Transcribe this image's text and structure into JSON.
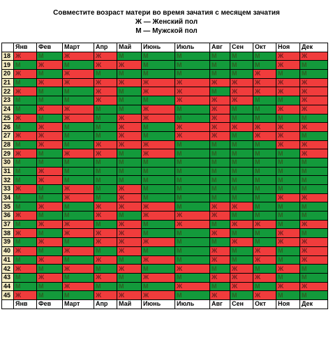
{
  "header": {
    "title": "Совместите возраст матери во время зачатия с месяцем зачатия",
    "legend_female": "Ж — Женский пол",
    "legend_male": "М — Мужской пол"
  },
  "months": [
    "Янв",
    "Фев",
    "Март",
    "Апр",
    "Май",
    "Июнь",
    "Июль",
    "Авг",
    "Сен",
    "Окт",
    "Ноя",
    "Дек"
  ],
  "colors": {
    "female": "#f03c3c",
    "male": "#139a3b",
    "age_bg": "#f4ecc2"
  },
  "table": {
    "rows": [
      {
        "age": "18",
        "cells": [
          "Ж",
          "М",
          "Ж",
          "Ж",
          "М",
          "М",
          "М",
          "М",
          "М",
          "М",
          "Ж",
          "Ж"
        ]
      },
      {
        "age": "19",
        "cells": [
          "М",
          "Ж",
          "М",
          "Ж",
          "Ж",
          "М",
          "М",
          "М",
          "М",
          "М",
          "Ж",
          "М"
        ]
      },
      {
        "age": "20",
        "cells": [
          "Ж",
          "М",
          "Ж",
          "М",
          "М",
          "М",
          "М",
          "М",
          "М",
          "Ж",
          "М",
          "М"
        ]
      },
      {
        "age": "21",
        "cells": [
          "М",
          "Ж",
          "Ж",
          "Ж",
          "Ж",
          "Ж",
          "Ж",
          "Ж",
          "Ж",
          "Ж",
          "Ж",
          "Ж"
        ]
      },
      {
        "age": "22",
        "cells": [
          "Ж",
          "М",
          "М",
          "Ж",
          "М",
          "Ж",
          "Ж",
          "М",
          "Ж",
          "Ж",
          "Ж",
          "Ж"
        ]
      },
      {
        "age": "23",
        "cells": [
          "М",
          "М",
          "М",
          "Ж",
          "М",
          "М",
          "Ж",
          "Ж",
          "Ж",
          "М",
          "М",
          "Ж"
        ]
      },
      {
        "age": "24",
        "cells": [
          "М",
          "Ж",
          "Ж",
          "М",
          "М",
          "Ж",
          "М",
          "Ж",
          "М",
          "М",
          "Ж",
          "Ж"
        ]
      },
      {
        "age": "25",
        "cells": [
          "Ж",
          "М",
          "Ж",
          "М",
          "Ж",
          "Ж",
          "М",
          "Ж",
          "М",
          "М",
          "М",
          "М"
        ]
      },
      {
        "age": "26",
        "cells": [
          "М",
          "Ж",
          "М",
          "М",
          "Ж",
          "М",
          "Ж",
          "Ж",
          "Ж",
          "Ж",
          "Ж",
          "Ж"
        ]
      },
      {
        "age": "27",
        "cells": [
          "Ж",
          "Ж",
          "М",
          "М",
          "Ж",
          "М",
          "Ж",
          "Ж",
          "М",
          "Ж",
          "Ж",
          "М"
        ]
      },
      {
        "age": "28",
        "cells": [
          "М",
          "Ж",
          "М",
          "Ж",
          "Ж",
          "Ж",
          "М",
          "М",
          "М",
          "М",
          "Ж",
          "Ж"
        ]
      },
      {
        "age": "29",
        "cells": [
          "Ж",
          "М",
          "Ж",
          "Ж",
          "М",
          "Ж",
          "М",
          "М",
          "М",
          "М",
          "М",
          "Ж"
        ]
      },
      {
        "age": "30",
        "cells": [
          "М",
          "М",
          "М",
          "М",
          "М",
          "М",
          "М",
          "М",
          "М",
          "М",
          "М",
          "М"
        ]
      },
      {
        "age": "31",
        "cells": [
          "М",
          "Ж",
          "М",
          "М",
          "М",
          "М",
          "М",
          "М",
          "М",
          "М",
          "М",
          "М"
        ]
      },
      {
        "age": "32",
        "cells": [
          "М",
          "Ж",
          "М",
          "М",
          "М",
          "М",
          "М",
          "М",
          "М",
          "М",
          "М",
          "М"
        ]
      },
      {
        "age": "33",
        "cells": [
          "Ж",
          "М",
          "Ж",
          "М",
          "Ж",
          "М",
          "М",
          "М",
          "М",
          "М",
          "М",
          "М"
        ]
      },
      {
        "age": "34",
        "cells": [
          "М",
          "М",
          "Ж",
          "М",
          "Ж",
          "М",
          "М",
          "М",
          "М",
          "М",
          "Ж",
          "Ж"
        ]
      },
      {
        "age": "35",
        "cells": [
          "М",
          "Ж",
          "М",
          "Ж",
          "Ж",
          "Ж",
          "М",
          "Ж",
          "Ж",
          "М",
          "М",
          "М"
        ]
      },
      {
        "age": "36",
        "cells": [
          "Ж",
          "М",
          "М",
          "Ж",
          "М",
          "Ж",
          "Ж",
          "Ж",
          "М",
          "М",
          "М",
          "М"
        ]
      },
      {
        "age": "37",
        "cells": [
          "М",
          "Ж",
          "Ж",
          "М",
          "Ж",
          "М",
          "Ж",
          "М",
          "Ж",
          "Ж",
          "М",
          "Ж"
        ]
      },
      {
        "age": "38",
        "cells": [
          "Ж",
          "М",
          "Ж",
          "Ж",
          "Ж",
          "М",
          "М",
          "Ж",
          "М",
          "М",
          "Ж",
          "М"
        ]
      },
      {
        "age": "39",
        "cells": [
          "М",
          "Ж",
          "М",
          "Ж",
          "Ж",
          "Ж",
          "М",
          "М",
          "Ж",
          "М",
          "Ж",
          "Ж"
        ]
      },
      {
        "age": "40",
        "cells": [
          "Ж",
          "М",
          "Ж",
          "М",
          "Ж",
          "М",
          "М",
          "Ж",
          "М",
          "Ж",
          "М",
          "Ж"
        ]
      },
      {
        "age": "41",
        "cells": [
          "М",
          "Ж",
          "М",
          "Ж",
          "М",
          "Ж",
          "М",
          "Ж",
          "М",
          "Ж",
          "М",
          "Ж"
        ]
      },
      {
        "age": "42",
        "cells": [
          "Ж",
          "М",
          "Ж",
          "М",
          "Ж",
          "М",
          "Ж",
          "М",
          "Ж",
          "М",
          "Ж",
          "М"
        ]
      },
      {
        "age": "43",
        "cells": [
          "М",
          "Ж",
          "М",
          "Ж",
          "М",
          "Ж",
          "М",
          "Ж",
          "Ж",
          "Ж",
          "М",
          "М"
        ]
      },
      {
        "age": "44",
        "cells": [
          "М",
          "М",
          "Ж",
          "М",
          "М",
          "М",
          "Ж",
          "М",
          "Ж",
          "М",
          "Ж",
          "Ж"
        ]
      },
      {
        "age": "45",
        "cells": [
          "Ж",
          "М",
          "М",
          "Ж",
          "Ж",
          "Ж",
          "М",
          "Ж",
          "М",
          "Ж",
          "М",
          "М"
        ]
      }
    ]
  }
}
